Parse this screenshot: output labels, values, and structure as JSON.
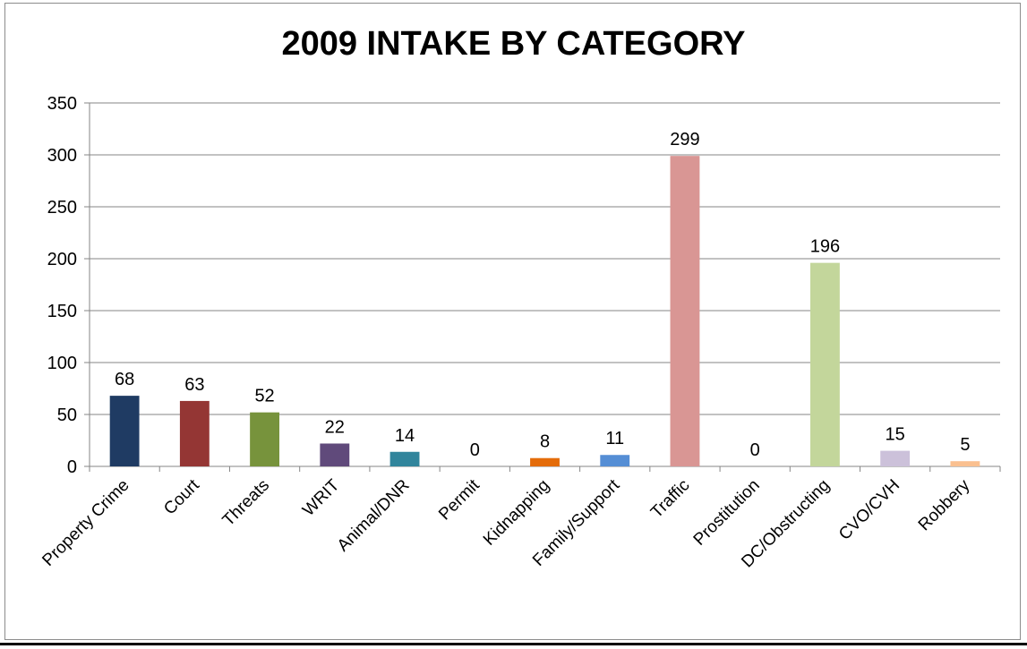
{
  "chart_data": {
    "type": "bar",
    "title": "2009 INTAKE BY CATEGORY",
    "xlabel": "",
    "ylabel": "",
    "ylim": [
      0,
      350
    ],
    "yticks": [
      0,
      50,
      100,
      150,
      200,
      250,
      300,
      350
    ],
    "grid": true,
    "legend": "none",
    "categories": [
      "Property Crime",
      "Court",
      "Threats",
      "WRIT",
      "Animal/DNR",
      "Permit",
      "Kidnapping",
      "Family/Support",
      "Traffic",
      "Prostitution",
      "DC/Obstructing",
      "CVO/CVH",
      "Robbery"
    ],
    "values": [
      68,
      63,
      52,
      22,
      14,
      0,
      8,
      11,
      299,
      0,
      196,
      15,
      5
    ],
    "colors": [
      "#1f3b63",
      "#943634",
      "#77933c",
      "#604a7b",
      "#31859c",
      "#b3b3b3",
      "#e46c0a",
      "#558ed5",
      "#d99694",
      "#b7b7b7",
      "#c3d69b",
      "#ccc1da",
      "#fac090"
    ]
  }
}
